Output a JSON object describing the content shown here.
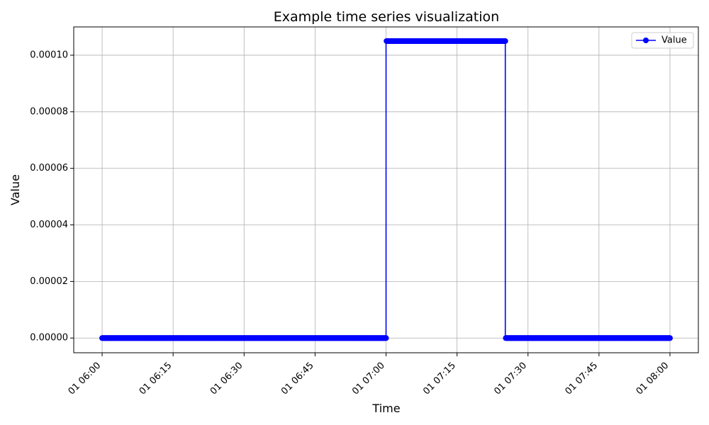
{
  "chart_data": {
    "type": "line",
    "title": "Example time series visualization",
    "xlabel": "Time",
    "ylabel": "Value",
    "grid": true,
    "legend_position": "top-right",
    "x_unit": "minutes since 01 06:00",
    "xlim": [
      -6,
      126
    ],
    "ylim": [
      -5.2e-06,
      0.00011
    ],
    "x_ticks": [
      {
        "value": 0,
        "label": "01 06:00"
      },
      {
        "value": 15,
        "label": "01 06:15"
      },
      {
        "value": 30,
        "label": "01 06:30"
      },
      {
        "value": 45,
        "label": "01 06:45"
      },
      {
        "value": 60,
        "label": "01 07:00"
      },
      {
        "value": 75,
        "label": "01 07:15"
      },
      {
        "value": 90,
        "label": "01 07:30"
      },
      {
        "value": 105,
        "label": "01 07:45"
      },
      {
        "value": 120,
        "label": "01 08:00"
      }
    ],
    "y_ticks": [
      {
        "value": 0,
        "label": "0.00000"
      },
      {
        "value": 2e-05,
        "label": "0.00002"
      },
      {
        "value": 4e-05,
        "label": "0.00004"
      },
      {
        "value": 6e-05,
        "label": "0.00006"
      },
      {
        "value": 8e-05,
        "label": "0.00008"
      },
      {
        "value": 0.0001,
        "label": "0.00010"
      }
    ],
    "series": [
      {
        "name": "Value",
        "color": "#0000ff",
        "marker": "circle",
        "segments": [
          {
            "x_start": 0,
            "x_end": 60,
            "y": 0
          },
          {
            "x_start": 60,
            "x_end": 85.2,
            "y": 0.000105
          },
          {
            "x_start": 85.2,
            "x_end": 120,
            "y": 0
          }
        ],
        "sample_interval_minutes": 0.1
      }
    ]
  }
}
